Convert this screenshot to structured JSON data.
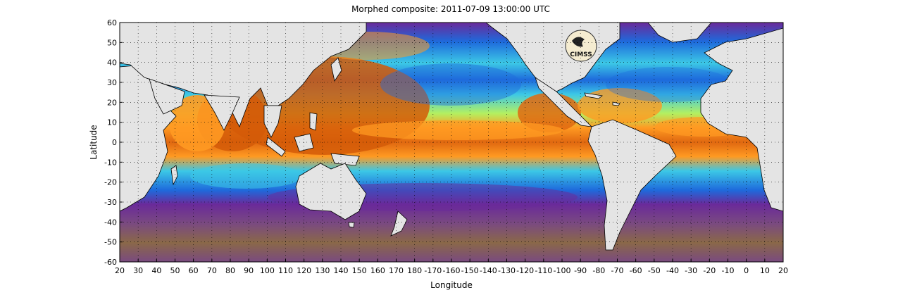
{
  "title": "Morphed composite: 2011-07-09 13:00:00 UTC",
  "logo_text": "CIMSS",
  "chart_data": {
    "type": "heatmap",
    "xlabel": "Longitude",
    "ylabel": "Latitude",
    "xlim": [
      20,
      380
    ],
    "ylim": [
      -60,
      60
    ],
    "x_ticks": [
      "20",
      "30",
      "40",
      "50",
      "60",
      "70",
      "80",
      "90",
      "100",
      "110",
      "120",
      "130",
      "140",
      "150",
      "160",
      "170",
      "180",
      "-170",
      "-160",
      "-150",
      "-140",
      "-130",
      "-120",
      "-110",
      "-100",
      "-90",
      "-80",
      "-70",
      "-60",
      "-50",
      "-40",
      "-30",
      "-20",
      "-10",
      "0",
      "10",
      "20"
    ],
    "y_ticks": [
      "60",
      "50",
      "40",
      "30",
      "20",
      "10",
      "0",
      "-10",
      "-20",
      "-30",
      "-40",
      "-50",
      "-60"
    ],
    "grid": true,
    "colors": {
      "land": "#e4e4e4",
      "coast": "#000000",
      "very_low": "#8a6848",
      "low": "#6a2a9a",
      "mid_low": "#1e6adc",
      "mid": "#3cc8e6",
      "mid_high": "#b4f060",
      "high": "#ff9a22",
      "very_high": "#c85000"
    }
  }
}
